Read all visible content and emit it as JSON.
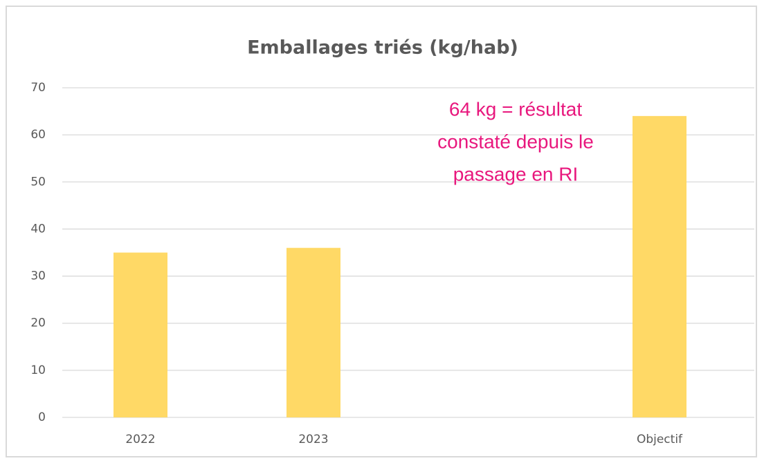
{
  "chart_data": {
    "type": "bar",
    "title": "Emballages triés (kg/hab)",
    "categories": [
      "2022",
      "2023",
      null,
      "Objectif"
    ],
    "values": [
      35,
      36,
      null,
      64
    ],
    "color": "#ffd966",
    "ylim": [
      0,
      70
    ],
    "yticks": [
      0,
      10,
      20,
      30,
      40,
      50,
      60,
      70
    ],
    "grid": true,
    "annotation": [
      "64 kg = résultat",
      "constaté depuis le",
      "passage en RI"
    ],
    "annotation_color": "#e8177d"
  }
}
